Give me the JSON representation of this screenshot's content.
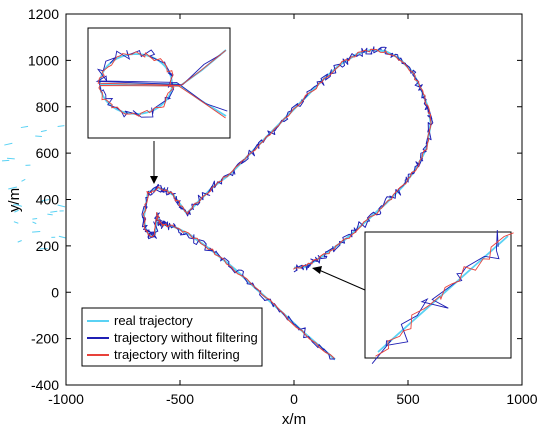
{
  "chart_data": {
    "type": "line",
    "xlabel": "x/m",
    "ylabel": "y/m",
    "xlim": [
      -1000,
      1000
    ],
    "ylim": [
      -400,
      1200
    ],
    "xticks": [
      -1000,
      -500,
      0,
      500,
      1000
    ],
    "yticks": [
      -400,
      -200,
      0,
      200,
      400,
      600,
      800,
      1000,
      1200
    ],
    "grid": false,
    "legend_position": "bottom-left",
    "colors": {
      "real": "#5ad2f4",
      "unfiltered": "#1f1fb4",
      "filtered": "#e8413a"
    },
    "series": [
      {
        "name": "real trajectory",
        "color": "#5ad2f4",
        "x": [
          180,
          50,
          -60,
          -160,
          -260,
          -360,
          -460,
          -520,
          -560,
          -580,
          -590,
          -600,
          -610,
          -630,
          -650,
          -660,
          -640,
          -600,
          -560,
          -530,
          -500,
          -470,
          -420,
          -360,
          -280,
          -200,
          -120,
          -40,
          40,
          120,
          200,
          280,
          340,
          400,
          460,
          520,
          560,
          590,
          600,
          580,
          540,
          480,
          400,
          320,
          240,
          160,
          100,
          50,
          0
        ],
        "y": [
          -290,
          -180,
          -80,
          10,
          100,
          180,
          250,
          280,
          290,
          290,
          300,
          340,
          250,
          240,
          270,
          320,
          430,
          450,
          440,
          420,
          380,
          340,
          390,
          450,
          510,
          590,
          670,
          750,
          830,
          910,
          980,
          1030,
          1045,
          1040,
          1010,
          950,
          870,
          790,
          730,
          620,
          540,
          460,
          380,
          310,
          240,
          180,
          140,
          110,
          105
        ]
      },
      {
        "name": "trajectory without filtering",
        "color": "#1f1fb4",
        "x": [
          180,
          50,
          -60,
          -160,
          -260,
          -360,
          -460,
          -520,
          -560,
          -580,
          -590,
          -600,
          -610,
          -630,
          -650,
          -660,
          -640,
          -600,
          -560,
          -530,
          -500,
          -470,
          -420,
          -360,
          -280,
          -200,
          -120,
          -40,
          40,
          120,
          200,
          280,
          340,
          400,
          460,
          520,
          560,
          590,
          600,
          580,
          540,
          480,
          400,
          320,
          240,
          160,
          100,
          50,
          0
        ],
        "y": [
          -290,
          -180,
          -80,
          10,
          100,
          180,
          250,
          280,
          290,
          290,
          300,
          340,
          250,
          240,
          270,
          320,
          430,
          450,
          440,
          420,
          380,
          340,
          390,
          450,
          510,
          590,
          670,
          750,
          830,
          910,
          980,
          1030,
          1045,
          1040,
          1010,
          950,
          870,
          790,
          730,
          620,
          540,
          460,
          380,
          310,
          240,
          180,
          140,
          110,
          105
        ]
      },
      {
        "name": "trajectory with filtering",
        "color": "#e8413a",
        "x": [
          180,
          50,
          -60,
          -160,
          -260,
          -360,
          -460,
          -520,
          -560,
          -580,
          -590,
          -600,
          -610,
          -630,
          -650,
          -660,
          -640,
          -600,
          -560,
          -530,
          -500,
          -470,
          -420,
          -360,
          -280,
          -200,
          -120,
          -40,
          40,
          120,
          200,
          280,
          340,
          400,
          460,
          520,
          560,
          590,
          600,
          580,
          540,
          480,
          400,
          320,
          240,
          160,
          100,
          50,
          0
        ],
        "y": [
          -290,
          -180,
          -80,
          10,
          100,
          180,
          250,
          280,
          290,
          290,
          300,
          340,
          250,
          240,
          270,
          320,
          430,
          450,
          440,
          420,
          380,
          340,
          390,
          450,
          510,
          590,
          670,
          750,
          830,
          910,
          980,
          1030,
          1045,
          1040,
          1010,
          950,
          870,
          790,
          730,
          620,
          540,
          460,
          380,
          310,
          240,
          180,
          140,
          110,
          105
        ]
      }
    ],
    "insets": [
      {
        "label_region": "upper-left zoom of loop near (-600, 350)"
      },
      {
        "label_region": "right zoom of trajectory end near (0, 100)"
      }
    ]
  }
}
